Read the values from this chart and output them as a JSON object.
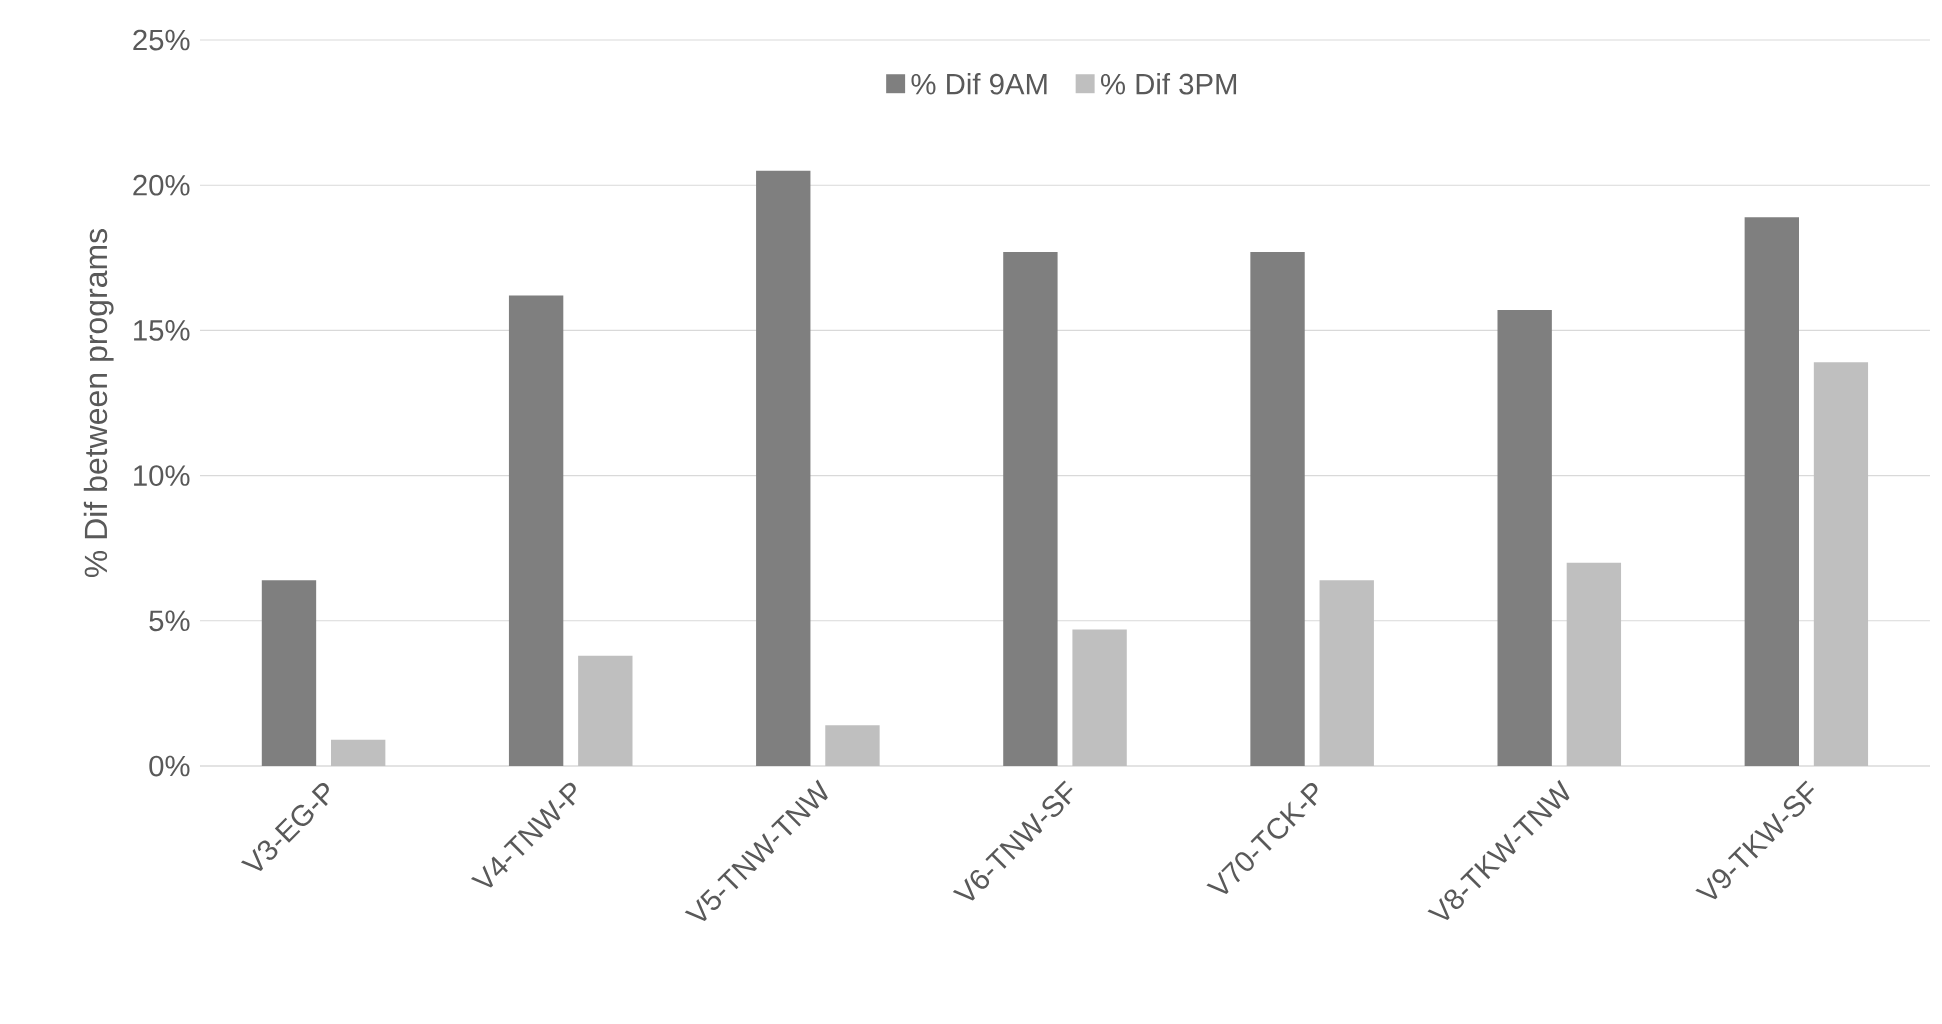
{
  "chart_data": {
    "type": "bar",
    "ylabel": "% Dif between programs",
    "categories": [
      "V3-EG-P",
      "V4-TNW-P",
      "V5-TNW-TNW",
      "V6-TNW-SF",
      "V70-TCK-P",
      "V8-TKW-TNW",
      "V9-TKW-SF"
    ],
    "series": [
      {
        "name": "% Dif 9AM",
        "color": "#7f7f7f",
        "values": [
          6.4,
          16.2,
          20.5,
          17.7,
          17.7,
          15.7,
          18.9
        ]
      },
      {
        "name": "% Dif 3PM",
        "color": "#bfbfbf",
        "values": [
          0.9,
          3.8,
          1.4,
          4.7,
          6.4,
          7.0,
          13.9
        ]
      }
    ],
    "ylim": [
      0,
      25
    ],
    "yticks": [
      {
        "value": 0,
        "label": "0%"
      },
      {
        "value": 5,
        "label": "5%"
      },
      {
        "value": 10,
        "label": "10%"
      },
      {
        "value": 15,
        "label": "15%"
      },
      {
        "value": 20,
        "label": "20%"
      },
      {
        "value": 25,
        "label": "25%"
      }
    ],
    "grid": "y",
    "legend": "top"
  }
}
